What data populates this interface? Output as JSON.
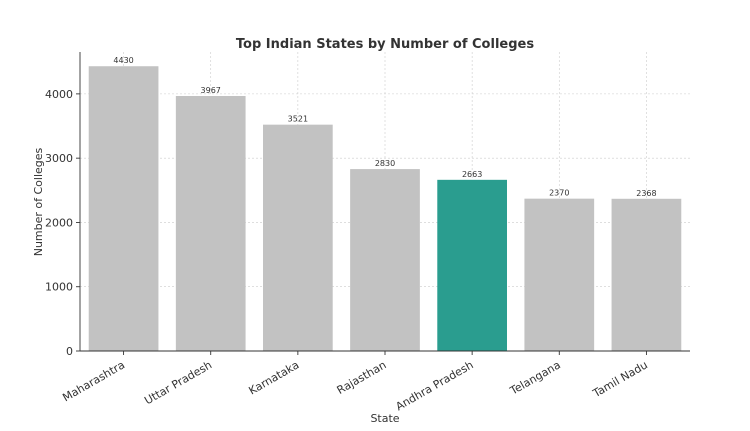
{
  "chart_data": {
    "type": "bar",
    "title": "Top Indian States by Number of Colleges",
    "xlabel": "State",
    "ylabel": "Number of Colleges",
    "categories": [
      "Maharashtra",
      "Uttar Pradesh",
      "Karnataka",
      "Rajasthan",
      "Andhra Pradesh",
      "Telangana",
      "Tamil Nadu"
    ],
    "values": [
      4430,
      3967,
      3521,
      2830,
      2663,
      2370,
      2368
    ],
    "data_labels": [
      "4430",
      "3967",
      "3521",
      "2830",
      "2663",
      "2370",
      "2368"
    ],
    "yticks": [
      0,
      1000,
      2000,
      3000,
      4000
    ],
    "ytick_labels": [
      "0",
      "1000",
      "2000",
      "3000",
      "4000"
    ],
    "ylim": [
      0,
      4651.5
    ],
    "grid": true,
    "highlight_category": "Andhra Pradesh",
    "colors": {
      "default": "#c2c2c2",
      "highlight": "#2a9d8f"
    }
  }
}
